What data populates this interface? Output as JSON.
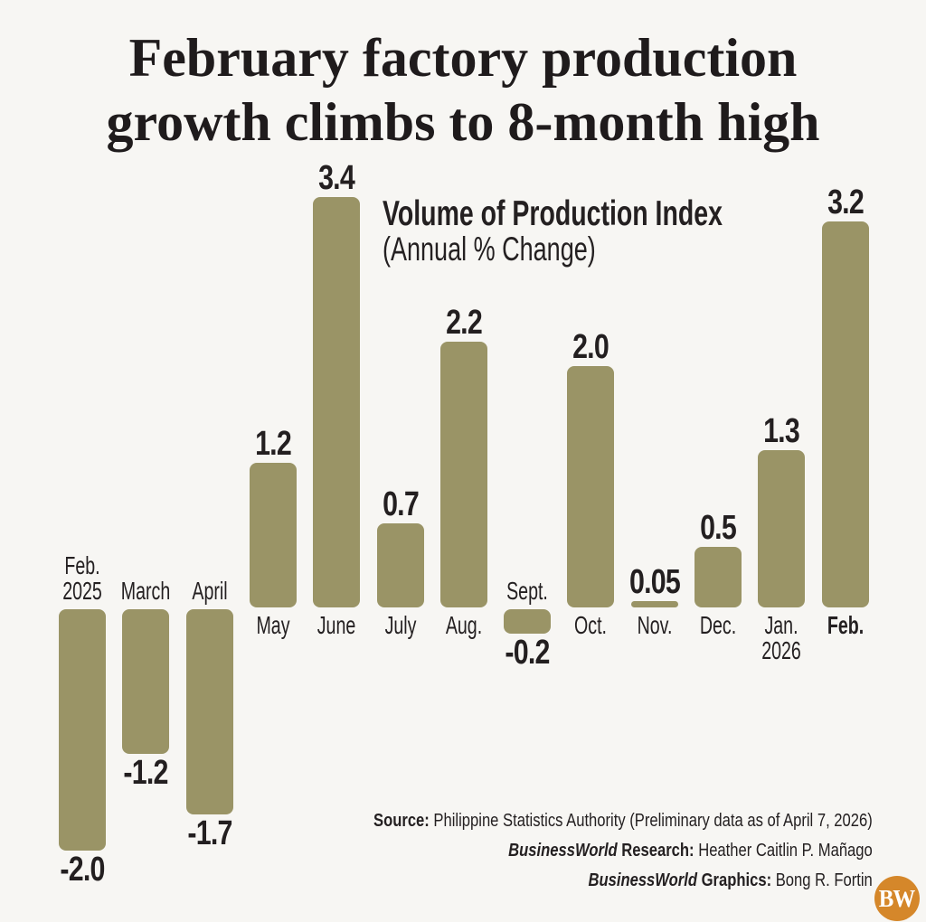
{
  "page": {
    "background": "#f7f6f3"
  },
  "title": {
    "line1": "February factory production",
    "line2": "growth climbs to 8-month high"
  },
  "chart": {
    "title": "Volume of Production Index",
    "subtitle": "(Annual % Change)"
  },
  "chart_data": {
    "type": "bar",
    "title": "Volume of Production Index",
    "units": "Annual % Change",
    "categories": [
      "Feb. 2025",
      "March",
      "April",
      "May",
      "June",
      "July",
      "Aug.",
      "Sept.",
      "Oct.",
      "Nov.",
      "Dec.",
      "Jan. 2026",
      "Feb. 2026"
    ],
    "values": [
      -2.0,
      -1.2,
      -1.7,
      1.2,
      3.4,
      0.7,
      2.2,
      -0.2,
      2.0,
      0.05,
      0.5,
      1.3,
      3.2
    ],
    "value_labels": [
      "-2.0",
      "-1.2",
      "-1.7",
      "1.2",
      "3.4",
      "0.7",
      "2.2",
      "-0.2",
      "2.0",
      "0.05",
      "0.5",
      "1.3",
      "3.2"
    ],
    "category_label_lines": [
      [
        "Feb.",
        "2025"
      ],
      [
        "March"
      ],
      [
        "April"
      ],
      [
        "May"
      ],
      [
        "June"
      ],
      [
        "July"
      ],
      [
        "Aug."
      ],
      [
        "Sept."
      ],
      [
        "Oct."
      ],
      [
        "Nov."
      ],
      [
        "Dec."
      ],
      [
        "Jan.",
        "2026"
      ],
      [
        "Feb."
      ]
    ],
    "highlighted_category_index": 12,
    "bar_color": "#9a9466",
    "label_color": "#231f20",
    "ylim": [
      -2.0,
      3.4
    ],
    "grid": false,
    "legend": "none"
  },
  "footer": {
    "source_label": "Source:",
    "source_rest": " Philippine Statistics Authority (Preliminary data as of April 7, 2026)",
    "research_brand": "BusinessWorld",
    "research_label": " Research:",
    "research_rest": " Heather Caitlin P. Mañago",
    "graphics_brand": "BusinessWorld",
    "graphics_label": " Graphics:",
    "graphics_rest": " Bong R. Fortin"
  },
  "logo": {
    "text": "BW",
    "background": "#d5872a",
    "text_color": "#ffffff"
  }
}
